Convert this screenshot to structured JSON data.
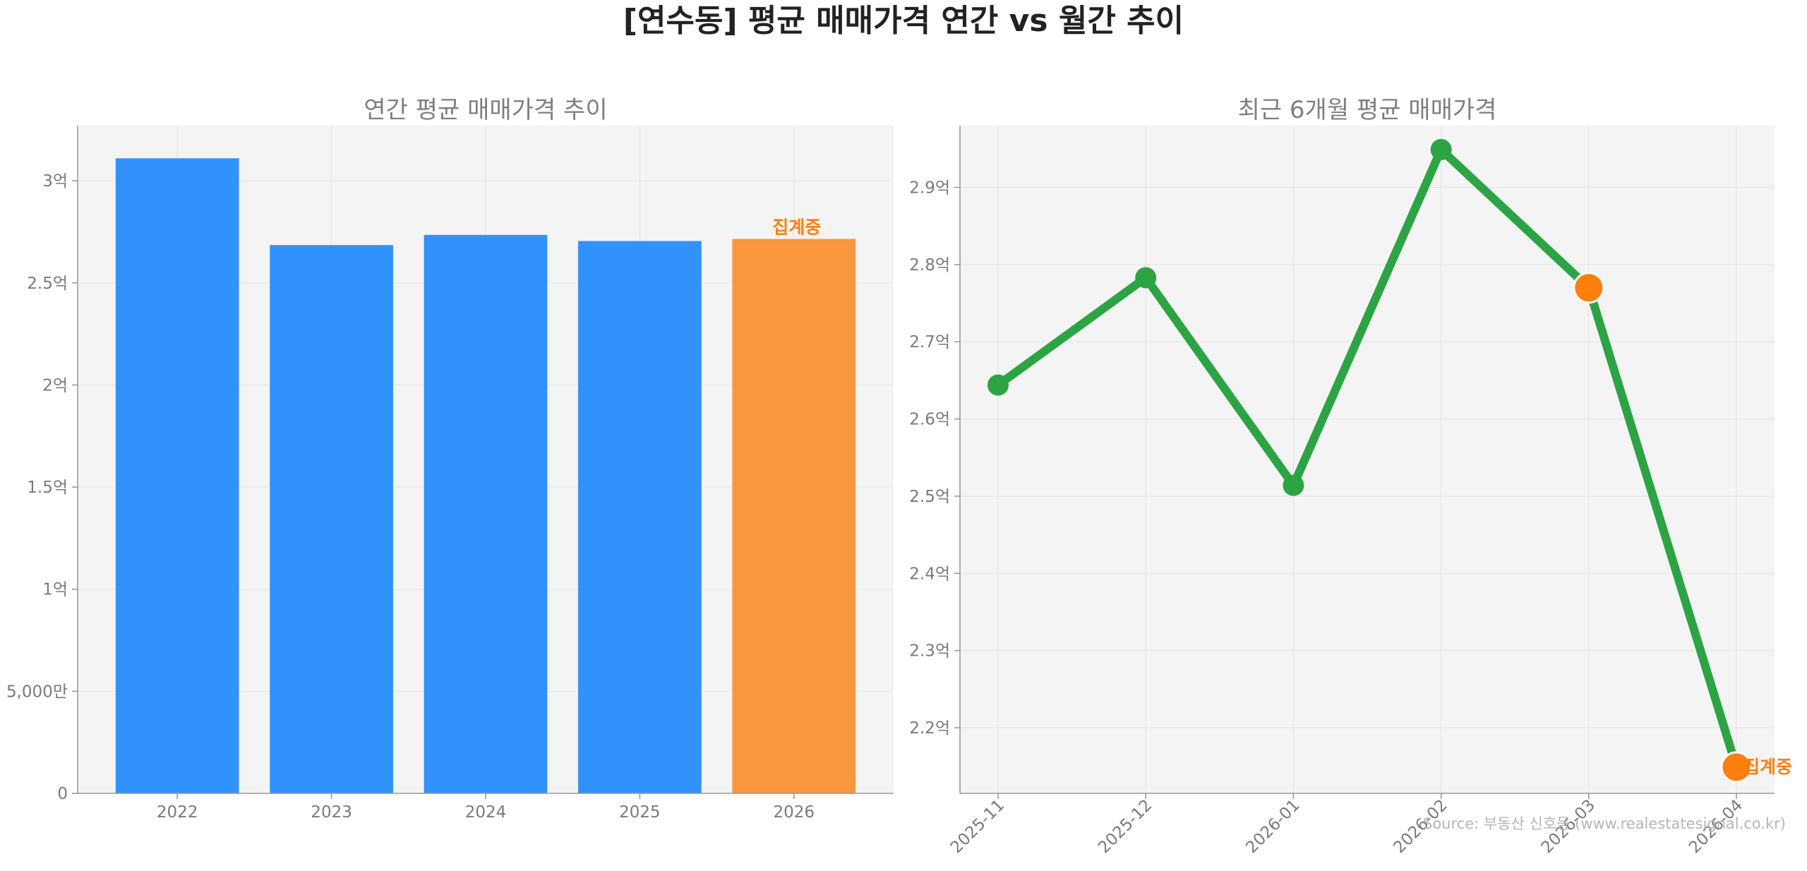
{
  "title": "[연수동] 평균 매매가격 연간 vs 월간 추이",
  "source": "Source: 부동산 신호등 (www.realestatesignal.co.kr)",
  "colors": {
    "bar": "#3192fb",
    "highlight": "#f9963e",
    "line": "#2ca444",
    "pending_marker": "#ff7f0e",
    "pending_text": "#ff7f0e"
  },
  "chart_data": [
    {
      "type": "bar",
      "title": "연간 평균 매매가격 추이",
      "categories": [
        "2022",
        "2023",
        "2024",
        "2025",
        "2026"
      ],
      "values": [
        311000000,
        268500000,
        273500000,
        270500000,
        271500000
      ],
      "highlight_index": 4,
      "annotation": {
        "index": 4,
        "text": "집계중"
      },
      "ylim": [
        0,
        327000000
      ],
      "yticks": [
        {
          "value": 0,
          "label": "0"
        },
        {
          "value": 50000000,
          "label": "5,000만"
        },
        {
          "value": 100000000,
          "label": "1억"
        },
        {
          "value": 150000000,
          "label": "1.5억"
        },
        {
          "value": 200000000,
          "label": "2억"
        },
        {
          "value": 250000000,
          "label": "2.5억"
        },
        {
          "value": 300000000,
          "label": "3억"
        }
      ],
      "grid": true,
      "xlabel": "",
      "ylabel": ""
    },
    {
      "type": "line",
      "title": "최근 6개월 평균 매매가격",
      "x": [
        "2025-11",
        "2025-12",
        "2026-01",
        "2026-02",
        "2026-03",
        "2026-04"
      ],
      "values": [
        264400000,
        278300000,
        251400000,
        294900000,
        277000000,
        214900000
      ],
      "pending_indices": [
        4,
        5
      ],
      "annotation": {
        "index": 5,
        "text": "집계중"
      },
      "ylim": [
        211500000,
        298000000
      ],
      "yticks": [
        {
          "value": 220000000,
          "label": "2.2억"
        },
        {
          "value": 230000000,
          "label": "2.3억"
        },
        {
          "value": 240000000,
          "label": "2.4억"
        },
        {
          "value": 250000000,
          "label": "2.5억"
        },
        {
          "value": 260000000,
          "label": "2.6억"
        },
        {
          "value": 270000000,
          "label": "2.7억"
        },
        {
          "value": 280000000,
          "label": "2.8억"
        },
        {
          "value": 290000000,
          "label": "2.9억"
        }
      ],
      "grid": true,
      "xlabel": "",
      "ylabel": ""
    }
  ]
}
